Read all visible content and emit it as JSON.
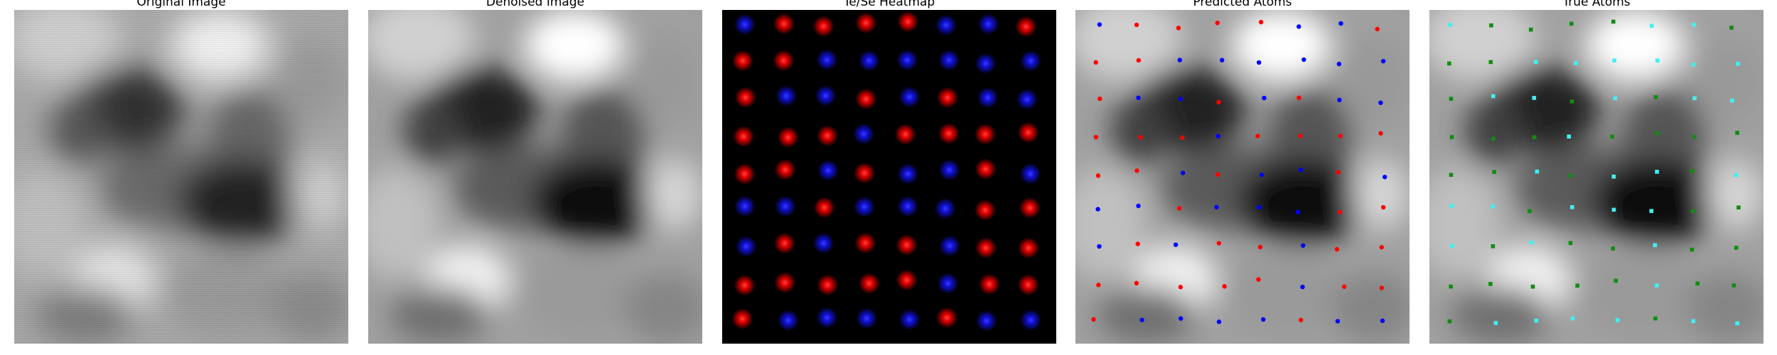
{
  "figure": {
    "panels": [
      {
        "id": "original",
        "title": "Original Image"
      },
      {
        "id": "denoised",
        "title": "Denoised Image"
      },
      {
        "id": "heatmap",
        "title": "Te/Se Heatmap"
      },
      {
        "id": "predicted",
        "title": "Predicted Atoms"
      },
      {
        "id": "true",
        "title": "True Atoms"
      }
    ]
  },
  "colors": {
    "te": "#ee0000",
    "se": "#1f2bdc",
    "pred_red": "#ff0000",
    "pred_blue": "#0000ff",
    "true_cyan": "#40f0f0",
    "true_green": "#118c11"
  }
}
